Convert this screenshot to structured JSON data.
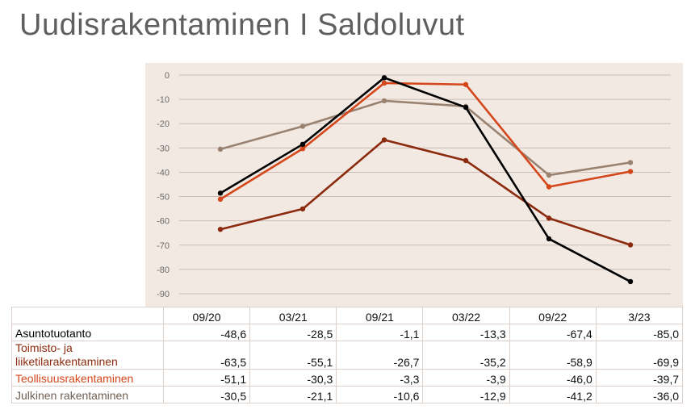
{
  "title": "Uudisrakentaminen I Saldoluvut",
  "chart_data": {
    "type": "line",
    "categories": [
      "09/20",
      "03/21",
      "09/21",
      "03/22",
      "09/22",
      "3/23"
    ],
    "ylim": [
      -90,
      0
    ],
    "yticks": [
      0,
      -10,
      -20,
      -30,
      -40,
      -50,
      -60,
      -70,
      -80,
      -90
    ],
    "series": [
      {
        "name": "Asuntotuotanto",
        "color": "#000000",
        "values": [
          -48.6,
          -28.5,
          -1.1,
          -13.3,
          -67.4,
          -85.0
        ]
      },
      {
        "name": "Toimisto- ja liiketilarakentaminen",
        "color": "#8b2a0c",
        "values": [
          -63.5,
          -55.1,
          -26.7,
          -35.2,
          -58.9,
          -69.9
        ]
      },
      {
        "name": "Teollisuusrakentaminen",
        "color": "#d4471b",
        "values": [
          -51.1,
          -30.3,
          -3.3,
          -3.9,
          -46.0,
          -39.7
        ]
      },
      {
        "name": "Julkinen rakentaminen",
        "color": "#9a8270",
        "values": [
          -30.5,
          -21.1,
          -10.6,
          -12.9,
          -41.2,
          -36.0
        ]
      }
    ]
  },
  "table": {
    "headers": [
      "09/20",
      "03/21",
      "09/21",
      "03/22",
      "09/22",
      "3/23"
    ],
    "rows": [
      {
        "label": "Asuntotuotanto",
        "values": [
          "-48,6",
          "-28,5",
          "-1,1",
          "-13,3",
          "-67,4",
          "-85,0"
        ]
      },
      {
        "label": "Toimisto- ja liiketilarakentaminen",
        "values": [
          "-63,5",
          "-55,1",
          "-26,7",
          "-35,2",
          "-58,9",
          "-69,9"
        ]
      },
      {
        "label": "Teollisuusrakentaminen",
        "values": [
          "-51,1",
          "-30,3",
          "-3,3",
          "-3,9",
          "-46,0",
          "-39,7"
        ]
      },
      {
        "label": "Julkinen rakentaminen",
        "values": [
          "-30,5",
          "-21,1",
          "-10,6",
          "-12,9",
          "-41,2",
          "-36,0"
        ]
      }
    ]
  }
}
